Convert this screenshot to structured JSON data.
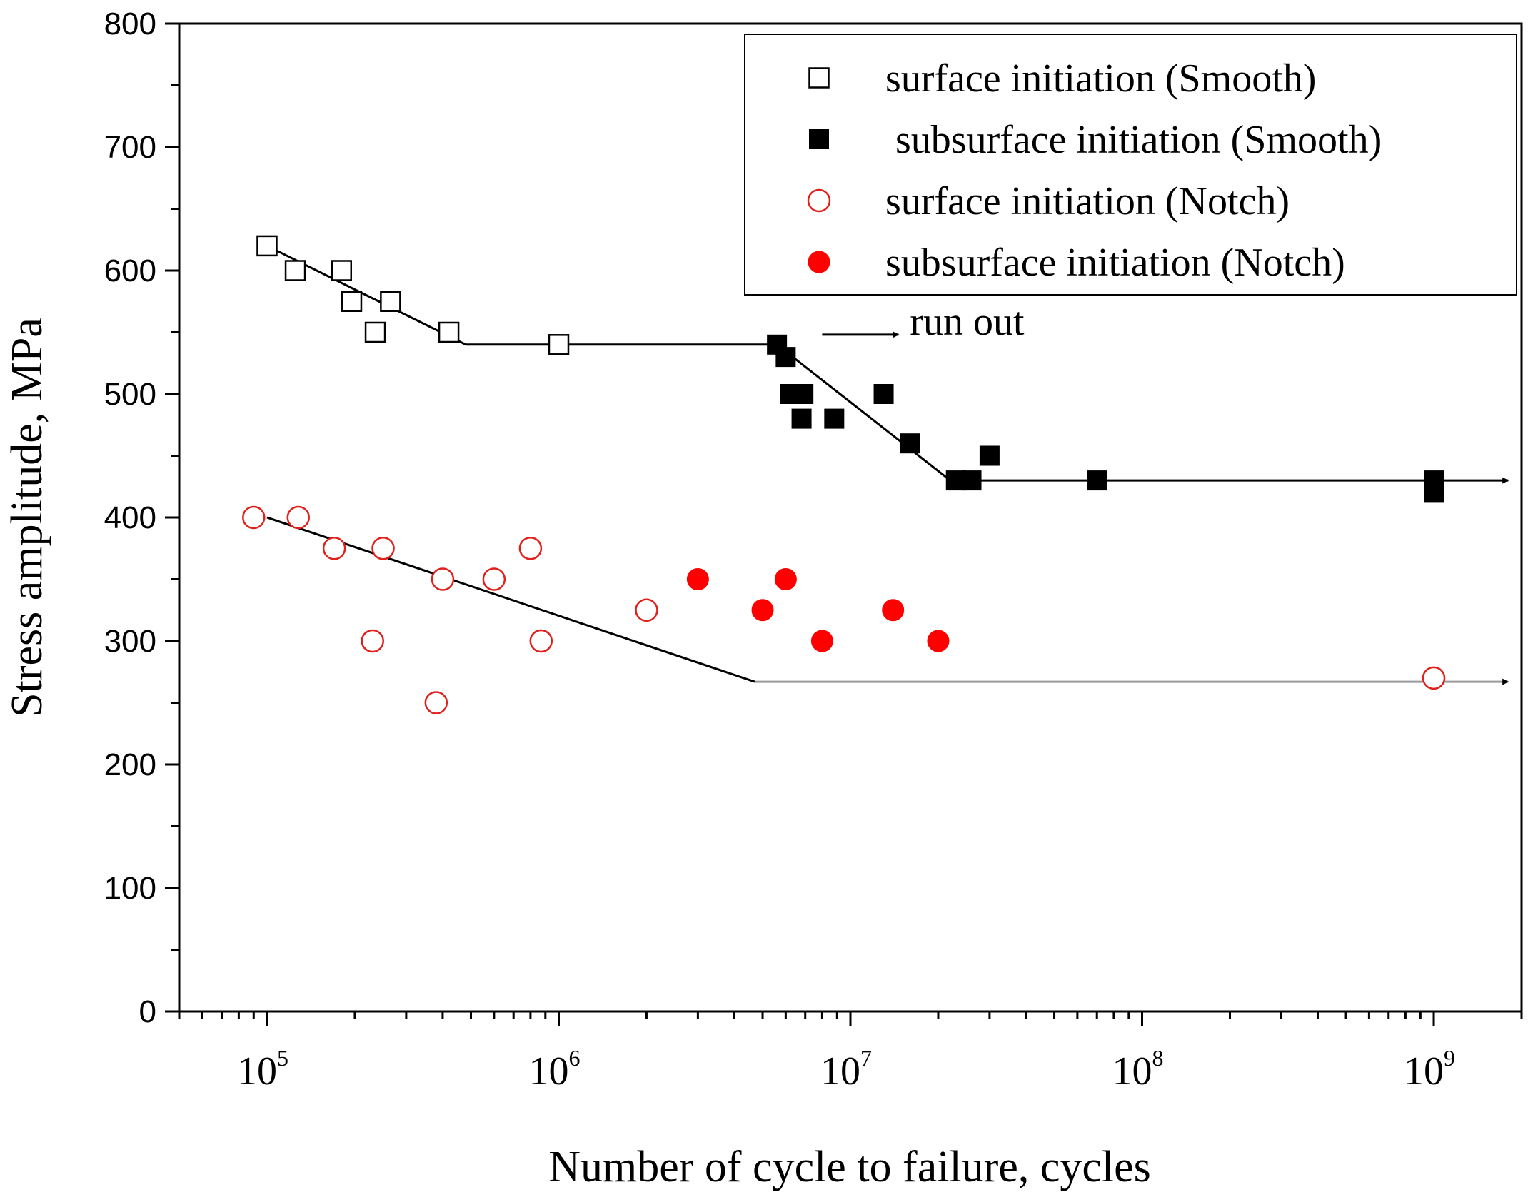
{
  "chart_data": {
    "type": "scatter",
    "xscale": "log",
    "xlim": [
      50000,
      2000000000
    ],
    "ylim": [
      0,
      800
    ],
    "xlabel": "Number of cycle to failure, cycles",
    "ylabel": "Stress amplitude, MPa",
    "y_ticks": [
      "0",
      "100",
      "200",
      "300",
      "400",
      "500",
      "600",
      "700",
      "800"
    ],
    "y_tick_values": [
      0,
      100,
      200,
      300,
      400,
      500,
      600,
      700,
      800
    ],
    "x_ticks": [
      {
        "value": 100000,
        "base": "10",
        "exp": "5"
      },
      {
        "value": 1000000,
        "base": "10",
        "exp": "6"
      },
      {
        "value": 10000000,
        "base": "10",
        "exp": "7"
      },
      {
        "value": 100000000,
        "base": "10",
        "exp": "8"
      },
      {
        "value": 1000000000,
        "base": "10",
        "exp": "9"
      }
    ],
    "legend_position": "top-right",
    "series": [
      {
        "name": "surface initiation (Smooth)",
        "marker": "square-open",
        "color": "#000000",
        "points": [
          [
            100000,
            620
          ],
          [
            125000,
            600
          ],
          [
            180000,
            600
          ],
          [
            195000,
            575
          ],
          [
            265000,
            575
          ],
          [
            235000,
            550
          ],
          [
            420000,
            550
          ],
          [
            1000000,
            540
          ]
        ]
      },
      {
        "name": " subsurface initiation (Smooth)",
        "marker": "square-filled",
        "color": "#000000",
        "points": [
          [
            5600000,
            540
          ],
          [
            6000000,
            530
          ],
          [
            6200000,
            500
          ],
          [
            6900000,
            500
          ],
          [
            6800000,
            480
          ],
          [
            8800000,
            480
          ],
          [
            13000000,
            500
          ],
          [
            16000000,
            460
          ],
          [
            23000000,
            430
          ],
          [
            26000000,
            430
          ],
          [
            30000000,
            450
          ],
          [
            70000000,
            430
          ],
          [
            1000000000,
            430
          ],
          [
            1000000000,
            420
          ]
        ]
      },
      {
        "name": "surface initiation (Notch)",
        "marker": "circle-open",
        "color": "#e0201b",
        "points": [
          [
            90000,
            400
          ],
          [
            128000,
            400
          ],
          [
            170000,
            375
          ],
          [
            250000,
            375
          ],
          [
            400000,
            350
          ],
          [
            600000,
            350
          ],
          [
            800000,
            375
          ],
          [
            230000,
            300
          ],
          [
            870000,
            300
          ],
          [
            2000000,
            325
          ],
          [
            380000,
            250
          ],
          [
            1000000000,
            270
          ]
        ]
      },
      {
        "name": "subsurface initiation (Notch)",
        "marker": "circle-filled",
        "color": "#ff0000",
        "points": [
          [
            3000000,
            350
          ],
          [
            6000000,
            350
          ],
          [
            5000000,
            325
          ],
          [
            14000000,
            325
          ],
          [
            8000000,
            300
          ],
          [
            20000000,
            300
          ]
        ]
      }
    ],
    "fit_lines": [
      {
        "name": "smooth-fit",
        "color": "#000000",
        "points": [
          [
            100000,
            620
          ],
          [
            480000,
            540
          ],
          [
            5600000,
            540
          ],
          [
            22000000,
            430
          ],
          [
            1800000000,
            430
          ]
        ],
        "arrow_end": true
      },
      {
        "name": "notch-fit-sloped",
        "color": "#000000",
        "points": [
          [
            100000,
            400
          ],
          [
            4700000,
            267
          ]
        ],
        "arrow_end": false
      },
      {
        "name": "notch-fit-flat",
        "color": "#9a9a9a",
        "points": [
          [
            4700000,
            267
          ],
          [
            1800000000,
            267
          ]
        ],
        "arrow_end": true
      }
    ],
    "annotations": [
      {
        "text": "run out",
        "arrow": "right",
        "anchor": [
          8000000,
          555
        ]
      }
    ]
  }
}
